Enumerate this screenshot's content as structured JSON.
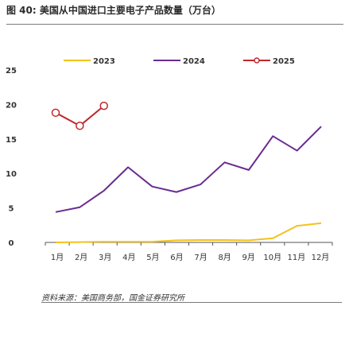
{
  "figure": {
    "title": "图 40: 美国从中国进口主要电子产品数量（万台）",
    "source": "资料来源：美国商务部，国金证券研究所"
  },
  "chart_data": {
    "type": "line",
    "categories": [
      "1月",
      "2月",
      "3月",
      "4月",
      "5月",
      "6月",
      "7月",
      "8月",
      "9月",
      "10月",
      "11月",
      "12月"
    ],
    "series": [
      {
        "name": "2023",
        "color": "#F2C21B",
        "marker": "none",
        "values": [
          0.0,
          0.05,
          0.1,
          0.1,
          0.1,
          0.3,
          0.35,
          0.35,
          0.3,
          0.6,
          2.4,
          2.8
        ]
      },
      {
        "name": "2024",
        "color": "#6A2C91",
        "marker": "none",
        "values": [
          4.4,
          5.1,
          7.5,
          10.9,
          8.1,
          7.3,
          8.4,
          11.6,
          10.5,
          15.4,
          13.3,
          16.8
        ]
      },
      {
        "name": "2025",
        "color": "#C0282D",
        "marker": "circle",
        "values": [
          18.8,
          16.9,
          19.8,
          null,
          null,
          null,
          null,
          null,
          null,
          null,
          null,
          null
        ]
      }
    ],
    "ylim": [
      0,
      25
    ],
    "yticks": [
      0,
      5,
      10,
      15,
      20,
      25
    ],
    "legend_position": "top",
    "grid": false
  }
}
